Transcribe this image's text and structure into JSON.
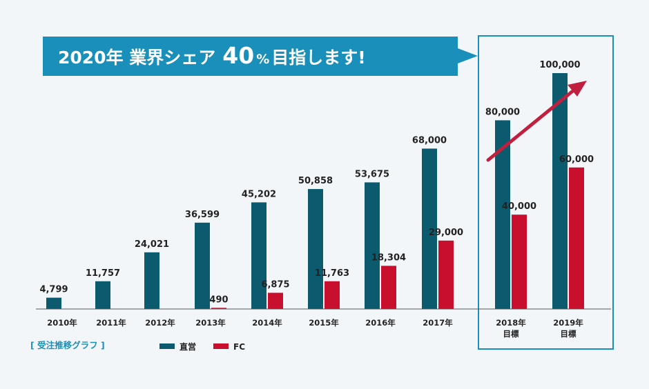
{
  "banner": {
    "prefix": "2020年 業界シェア",
    "number": "40",
    "percent": "%",
    "suffix": "目指します!"
  },
  "colors": {
    "direct": "#0b5a6e",
    "fc": "#c8102e",
    "accent": "#1a8fb9",
    "arrow": "#c0203e",
    "baseline": "#555555"
  },
  "chart_data": {
    "type": "bar",
    "title": "受注推移グラフ",
    "categories": [
      "2010年",
      "2011年",
      "2012年",
      "2013年",
      "2014年",
      "2015年",
      "2016年",
      "2017年",
      "2018年\n目標",
      "2019年\n目標"
    ],
    "series": [
      {
        "name": "直営",
        "values": [
          4799,
          11757,
          24021,
          36599,
          45202,
          50858,
          53675,
          68000,
          80000,
          100000
        ],
        "labels": [
          "4,799",
          "11,757",
          "24,021",
          "36,599",
          "45,202",
          "50,858",
          "53,675",
          "68,000",
          "80,000",
          "100,000"
        ]
      },
      {
        "name": "FC",
        "values": [
          null,
          null,
          null,
          490,
          6875,
          11763,
          18304,
          29000,
          40000,
          60000
        ],
        "labels": [
          "",
          "",
          "",
          "490",
          "6,875",
          "11,763",
          "18,304",
          "29,000",
          "40,000",
          "60,000"
        ]
      }
    ],
    "ylim": [
      0,
      100000
    ],
    "grid": false,
    "legend": "bottom-left",
    "highlight": [
      "2018年\n目標",
      "2019年\n目標"
    ]
  }
}
